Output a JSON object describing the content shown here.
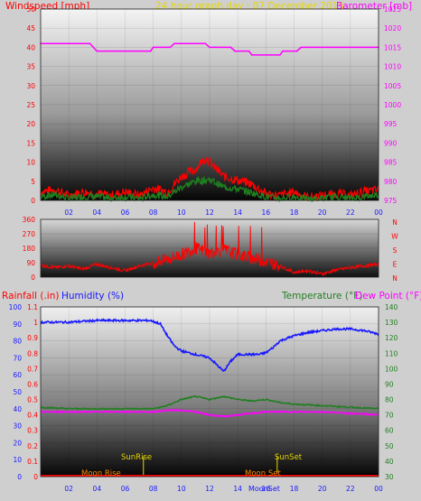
{
  "colors": {
    "panel_bg": "#cfcfcf",
    "wind_speed": "#ff0000",
    "wind_gust": "#1f7f1f",
    "barometer": "#ff00ff",
    "direction": "#ff0000",
    "humidity": "#1818ff",
    "rainfall": "#ff0000",
    "temperature": "#1f7f1f",
    "dewpoint": "#ff00ff",
    "moon": "#ff8c00",
    "sun": "#e6d600",
    "title": "#e6d600"
  },
  "chart_data": [
    {
      "type": "line",
      "title": "24 hour graph day : 07 December 2015",
      "ylabel": "Windspeed [mph]",
      "y2label": "Barometer [mb]",
      "x_ticks": [
        "02",
        "04",
        "06",
        "08",
        "10",
        "12",
        "14",
        "16",
        "18",
        "20",
        "22",
        "00"
      ],
      "y_ticks": [
        "0",
        "5",
        "10",
        "15",
        "20",
        "25",
        "30",
        "35",
        "40",
        "45",
        "50"
      ],
      "y2_ticks": [
        "975",
        "980",
        "985",
        "990",
        "995",
        "1000",
        "1005",
        "1010",
        "1015",
        "1020",
        "1025"
      ],
      "xlim": [
        0,
        24
      ],
      "ylim": [
        0,
        50
      ],
      "y2lim": [
        975,
        1025
      ],
      "series": [
        {
          "axis": "right",
          "points": [
            [
              0,
              1016
            ],
            [
              3.5,
              1016
            ],
            [
              4.0,
              1014
            ],
            [
              7.8,
              1014
            ],
            [
              8.0,
              1015
            ],
            [
              9.2,
              1015
            ],
            [
              9.5,
              1016
            ],
            [
              11.7,
              1016
            ],
            [
              12.0,
              1015
            ],
            [
              13.5,
              1015
            ],
            [
              13.8,
              1014
            ],
            [
              14.8,
              1014
            ],
            [
              15.0,
              1013
            ],
            [
              17.0,
              1013
            ],
            [
              17.2,
              1014
            ],
            [
              18.2,
              1014
            ],
            [
              18.5,
              1015
            ],
            [
              24.0,
              1015
            ]
          ]
        },
        {
          "axis": "left",
          "points": [
            [
              0,
              2
            ],
            [
              1,
              2.5
            ],
            [
              2,
              1
            ],
            [
              3,
              2
            ],
            [
              4,
              1.5
            ],
            [
              5,
              1
            ],
            [
              6,
              2
            ],
            [
              7,
              1
            ],
            [
              8,
              3
            ],
            [
              9,
              2
            ],
            [
              10,
              6
            ],
            [
              11,
              8
            ],
            [
              11.7,
              11
            ],
            [
              12.2,
              9
            ],
            [
              13,
              6
            ],
            [
              14,
              5
            ],
            [
              15,
              4
            ],
            [
              16,
              1.5
            ],
            [
              17,
              1
            ],
            [
              18,
              2
            ],
            [
              19,
              0.5
            ],
            [
              20,
              1
            ],
            [
              21,
              1.5
            ],
            [
              22,
              1
            ],
            [
              23,
              2
            ],
            [
              24,
              2.5
            ]
          ]
        },
        {
          "axis": "left",
          "points": [
            [
              0,
              1
            ],
            [
              1,
              1.5
            ],
            [
              2,
              0.5
            ],
            [
              3,
              1
            ],
            [
              4,
              1
            ],
            [
              5,
              0.5
            ],
            [
              6,
              1
            ],
            [
              7,
              0.5
            ],
            [
              8,
              1.5
            ],
            [
              9,
              1
            ],
            [
              10,
              3.5
            ],
            [
              11,
              5
            ],
            [
              12,
              5.5
            ],
            [
              13,
              3.5
            ],
            [
              14,
              3
            ],
            [
              15,
              2
            ],
            [
              16,
              1
            ],
            [
              17,
              0.5
            ],
            [
              18,
              1
            ],
            [
              19,
              0.3
            ],
            [
              20,
              0.5
            ],
            [
              21,
              1
            ],
            [
              22,
              0.5
            ],
            [
              23,
              1
            ],
            [
              24,
              1.5
            ]
          ]
        }
      ]
    },
    {
      "type": "line",
      "ylabel": "",
      "y_ticks": [
        "0",
        "90",
        "180",
        "270",
        "360"
      ],
      "ylim": [
        0,
        360
      ],
      "compass": [
        "N",
        "W",
        "S",
        "E",
        "N"
      ],
      "series": [
        {
          "points": [
            [
              0,
              75
            ],
            [
              1,
              60
            ],
            [
              2,
              70
            ],
            [
              3,
              50
            ],
            [
              4,
              80
            ],
            [
              5,
              60
            ],
            [
              6,
              40
            ],
            [
              7,
              70
            ],
            [
              8,
              90
            ],
            [
              9,
              110
            ],
            [
              10,
              140
            ],
            [
              11,
              180
            ],
            [
              12,
              150
            ],
            [
              13,
              170
            ],
            [
              14,
              140
            ],
            [
              15,
              120
            ],
            [
              16,
              95
            ],
            [
              17,
              70
            ],
            [
              18,
              30
            ],
            [
              19,
              40
            ],
            [
              20,
              20
            ],
            [
              21,
              45
            ],
            [
              22,
              60
            ],
            [
              23,
              70
            ],
            [
              24,
              80
            ]
          ]
        }
      ]
    },
    {
      "type": "line",
      "ylabel": "Rainfall (.in)",
      "ylabel2": "Humidity (%)",
      "y2label": "Temperature (°F)",
      "y2label2": "Dew Point (°F)",
      "x_ticks": [
        "02",
        "04",
        "06",
        "08",
        "10",
        "12",
        "14",
        "16",
        "18",
        "20",
        "22",
        "00"
      ],
      "rain_ticks": [
        "0",
        "0.1",
        "0.2",
        "0.3",
        "0.4",
        "0.5",
        "0.6",
        "0.7",
        "0.8",
        "0.9",
        "1",
        "1.1"
      ],
      "hum_ticks": [
        "0",
        "10",
        "20",
        "30",
        "40",
        "50",
        "60",
        "70",
        "80",
        "90",
        "100"
      ],
      "temp_ticks": [
        "30",
        "40",
        "50",
        "60",
        "70",
        "80",
        "90",
        "100",
        "110",
        "120",
        "130",
        "140"
      ],
      "xlim": [
        0,
        24
      ],
      "rain_ylim": [
        0,
        1.1
      ],
      "hum_ylim": [
        0,
        100
      ],
      "temp_ylim": [
        30,
        140
      ],
      "annotations": {
        "sunrise": "SunRise",
        "sunset": "SunSet",
        "moonrise": "Moon Rise",
        "moonset": "Moon Set",
        "moonset2": "MoonSet"
      },
      "series": [
        {
          "axis": "humidity",
          "points": [
            [
              0,
              91
            ],
            [
              2,
              91
            ],
            [
              4,
              92
            ],
            [
              6,
              92
            ],
            [
              7.8,
              92
            ],
            [
              8.5,
              90
            ],
            [
              9,
              83
            ],
            [
              9.5,
              77
            ],
            [
              10,
              74
            ],
            [
              11,
              72
            ],
            [
              12,
              70
            ],
            [
              12.5,
              66
            ],
            [
              13,
              62
            ],
            [
              13.5,
              68
            ],
            [
              14,
              72
            ],
            [
              15,
              72
            ],
            [
              15.5,
              72
            ],
            [
              16,
              73
            ],
            [
              16.5,
              76
            ],
            [
              17,
              80
            ],
            [
              18,
              83
            ],
            [
              19,
              85
            ],
            [
              20,
              86
            ],
            [
              21,
              87
            ],
            [
              22,
              87
            ],
            [
              23,
              86
            ],
            [
              24,
              84
            ]
          ]
        },
        {
          "axis": "temperature",
          "points": [
            [
              0,
              75
            ],
            [
              2,
              74
            ],
            [
              4,
              74
            ],
            [
              6,
              74
            ],
            [
              8,
              74
            ],
            [
              9,
              76
            ],
            [
              10,
              80
            ],
            [
              11,
              82
            ],
            [
              12,
              80
            ],
            [
              13,
              82
            ],
            [
              14,
              80
            ],
            [
              15,
              79
            ],
            [
              16,
              80
            ],
            [
              17,
              78
            ],
            [
              18,
              77
            ],
            [
              20,
              76
            ],
            [
              22,
              75
            ],
            [
              24,
              74
            ]
          ]
        },
        {
          "axis": "temperature",
          "points": [
            [
              0,
              72
            ],
            [
              2,
              72
            ],
            [
              4,
              72
            ],
            [
              6,
              72
            ],
            [
              8,
              72
            ],
            [
              9,
              73
            ],
            [
              10,
              73
            ],
            [
              11,
              72
            ],
            [
              12,
              70
            ],
            [
              13,
              69
            ],
            [
              14,
              70
            ],
            [
              15,
              71
            ],
            [
              16,
              72
            ],
            [
              18,
              72
            ],
            [
              20,
              72
            ],
            [
              22,
              71
            ],
            [
              24,
              70
            ]
          ]
        },
        {
          "axis": "rain",
          "points": [
            [
              0,
              0
            ],
            [
              24,
              0
            ]
          ]
        }
      ]
    }
  ]
}
